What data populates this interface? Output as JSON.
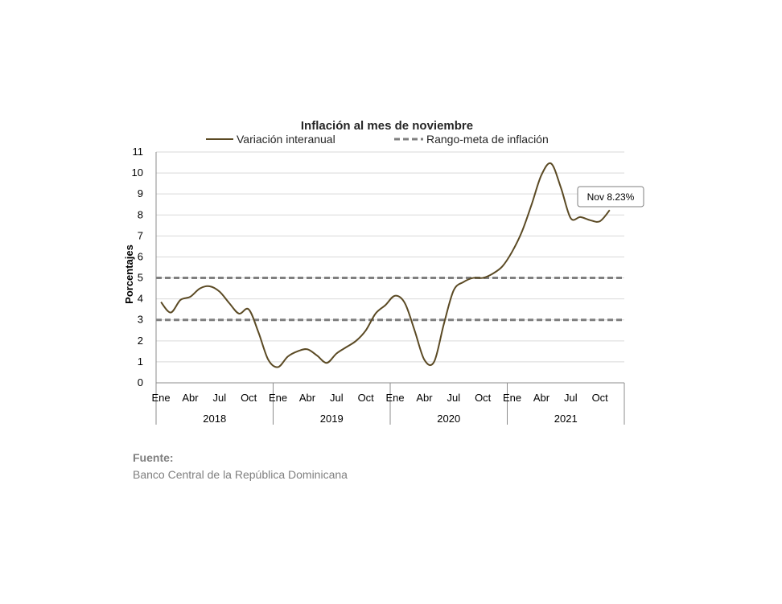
{
  "chart_data": {
    "type": "line",
    "title": "Inflación al mes de noviembre",
    "xlabel": "",
    "ylabel": "Porcentajes",
    "ylim": [
      0,
      11
    ],
    "yticks": [
      "0",
      "1",
      "2",
      "3",
      "4",
      "5",
      "6",
      "7",
      "8",
      "9",
      "10",
      "11"
    ],
    "grid": true,
    "legend_position": "top",
    "legend": {
      "series_label": "Variación interanual",
      "band_label": "Rango-meta de inflación"
    },
    "month_ticks": [
      "Ene",
      "Abr",
      "Jul",
      "Oct"
    ],
    "years": [
      "2018",
      "2019",
      "2020",
      "2021"
    ],
    "colors": {
      "series": "#5b4a24",
      "band": "#7f7f7f",
      "grid": "#d9d9d9",
      "axis": "#8c8c8c"
    },
    "target_range": {
      "low": 3,
      "high": 5
    },
    "series": [
      {
        "name": "Variación interanual",
        "x": [
          "2018-01",
          "2018-02",
          "2018-03",
          "2018-04",
          "2018-05",
          "2018-06",
          "2018-07",
          "2018-08",
          "2018-09",
          "2018-10",
          "2018-11",
          "2018-12",
          "2019-01",
          "2019-02",
          "2019-03",
          "2019-04",
          "2019-05",
          "2019-06",
          "2019-07",
          "2019-08",
          "2019-09",
          "2019-10",
          "2019-11",
          "2019-12",
          "2020-01",
          "2020-02",
          "2020-03",
          "2020-04",
          "2020-05",
          "2020-06",
          "2020-07",
          "2020-08",
          "2020-09",
          "2020-10",
          "2020-11",
          "2020-12",
          "2021-01",
          "2021-02",
          "2021-03",
          "2021-04",
          "2021-05",
          "2021-06",
          "2021-07",
          "2021-08",
          "2021-09",
          "2021-10",
          "2021-11"
        ],
        "values": [
          3.85,
          3.35,
          3.95,
          4.1,
          4.5,
          4.6,
          4.35,
          3.8,
          3.3,
          3.5,
          2.4,
          1.1,
          0.75,
          1.25,
          1.5,
          1.6,
          1.3,
          0.95,
          1.4,
          1.7,
          2.0,
          2.5,
          3.3,
          3.7,
          4.15,
          3.8,
          2.5,
          1.1,
          1.0,
          2.8,
          4.4,
          4.8,
          5.0,
          5.0,
          5.2,
          5.55,
          6.25,
          7.2,
          8.5,
          9.9,
          10.45,
          9.3,
          7.85,
          7.9,
          7.75,
          7.7,
          8.23
        ]
      }
    ],
    "annotation": {
      "text": "Nov 8.23%",
      "x": "2021-11",
      "y": 8.23
    }
  },
  "source": {
    "title": "Fuente:",
    "text": "Banco Central de la República Dominicana"
  }
}
